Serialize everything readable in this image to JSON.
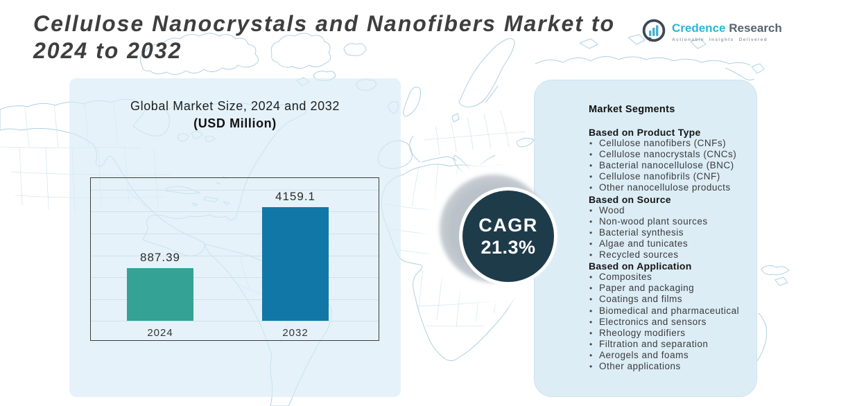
{
  "title_lines": [
    "Cellulose Nanocrystals and Nanofibers Market to",
    "2024 to 2032"
  ],
  "logo": {
    "brand_primary": "Credence",
    "brand_secondary": "Research",
    "tagline": "Actionable Insights Delivered",
    "colors": {
      "primary": "#2fb4d3",
      "secondary": "#57636e",
      "icon_ring": "#3d4a55",
      "icon_bars": "#42b2d0"
    }
  },
  "cagr": {
    "label": "CAGR",
    "value": "21.3%",
    "circle_color": "#1e3b4a",
    "text_color": "#ffffff"
  },
  "chart_data": {
    "type": "bar",
    "title": "Global Market Size, 2024 and 2032",
    "subtitle": "(USD Million)",
    "categories": [
      "2024",
      "2032"
    ],
    "values": [
      887.39,
      4159.1
    ],
    "value_labels": [
      "887.39",
      "4159.1"
    ],
    "bar_colors": [
      "#35a296",
      "#1177a6"
    ],
    "ylabel": "USD Million",
    "grid": true,
    "legend": false
  },
  "segments": {
    "title": "Market Segments",
    "sections": [
      {
        "heading": "Based on Product Type",
        "items": [
          "Cellulose nanofibers (CNFs)",
          "Cellulose nanocrystals (CNCs)",
          "Bacterial nanocellulose (BNC)",
          "Cellulose nanofibrils (CNF)",
          "Other nanocellulose products"
        ]
      },
      {
        "heading": "Based on Source",
        "items": [
          "Wood",
          "Non-wood plant sources",
          "Bacterial synthesis",
          "Algae and tunicates",
          "Recycled sources"
        ]
      },
      {
        "heading": "Based on Application",
        "items": [
          "Composites",
          "Paper and packaging",
          "Coatings and films",
          "Biomedical and pharmaceutical",
          "Electronics and sensors",
          "Rheology modifiers",
          "Filtration and separation",
          "Aerogels and foams",
          "Other applications"
        ]
      }
    ]
  }
}
